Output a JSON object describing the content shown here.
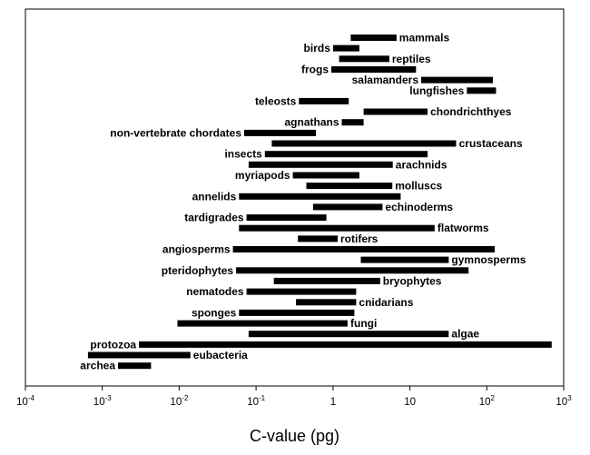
{
  "chart_data": {
    "type": "bar",
    "orientation": "horizontal-range",
    "title": "",
    "xlabel": "C-value (pg)",
    "ylabel": "",
    "xscale": "log",
    "xlim": [
      0.0001,
      1000
    ],
    "x_ticks": [
      {
        "base": "10",
        "exp": "-4"
      },
      {
        "base": "10",
        "exp": "-3"
      },
      {
        "base": "10",
        "exp": "-2"
      },
      {
        "base": "10",
        "exp": "-1"
      },
      {
        "base": "1",
        "exp": ""
      },
      {
        "base": "10",
        "exp": ""
      },
      {
        "base": "10",
        "exp": "2"
      },
      {
        "base": "10",
        "exp": "3"
      }
    ],
    "grid": false,
    "legend": "none",
    "bar_color": "#000000",
    "series": [
      {
        "label": "mammals",
        "min": 1.7,
        "max": 6.7,
        "label_side": "right"
      },
      {
        "label": "birds",
        "min": 1.0,
        "max": 2.2,
        "label_side": "left"
      },
      {
        "label": "reptiles",
        "min": 1.2,
        "max": 5.4,
        "label_side": "right"
      },
      {
        "label": "frogs",
        "min": 0.95,
        "max": 12,
        "label_side": "left"
      },
      {
        "label": "salamanders",
        "min": 14,
        "max": 120,
        "label_side": "left"
      },
      {
        "label": "lungfishes",
        "min": 55,
        "max": 132,
        "label_side": "left"
      },
      {
        "label": "teleosts",
        "min": 0.36,
        "max": 1.6,
        "label_side": "left"
      },
      {
        "label": "chondrichthyes",
        "min": 2.5,
        "max": 17,
        "label_side": "right"
      },
      {
        "label": "agnathans",
        "min": 1.3,
        "max": 2.5,
        "label_side": "left"
      },
      {
        "label": "non-vertebrate chordates",
        "min": 0.07,
        "max": 0.6,
        "label_side": "left"
      },
      {
        "label": "crustaceans",
        "min": 0.16,
        "max": 40,
        "label_side": "right"
      },
      {
        "label": "insects",
        "min": 0.13,
        "max": 17,
        "label_side": "left"
      },
      {
        "label": "arachnids",
        "min": 0.08,
        "max": 6,
        "label_side": "right"
      },
      {
        "label": "myriapods",
        "min": 0.3,
        "max": 2.2,
        "label_side": "left"
      },
      {
        "label": "molluscs",
        "min": 0.45,
        "max": 5.9,
        "label_side": "right"
      },
      {
        "label": "annelids",
        "min": 0.06,
        "max": 7.6,
        "label_side": "left"
      },
      {
        "label": "echinoderms",
        "min": 0.55,
        "max": 4.4,
        "label_side": "right"
      },
      {
        "label": "tardigrades",
        "min": 0.075,
        "max": 0.82,
        "label_side": "left"
      },
      {
        "label": "flatworms",
        "min": 0.06,
        "max": 21,
        "label_side": "right"
      },
      {
        "label": "rotifers",
        "min": 0.35,
        "max": 1.15,
        "label_side": "right"
      },
      {
        "label": "angiosperms",
        "min": 0.05,
        "max": 127,
        "label_side": "left"
      },
      {
        "label": "gymnosperms",
        "min": 2.3,
        "max": 32,
        "label_side": "right"
      },
      {
        "label": "pteridophytes",
        "min": 0.055,
        "max": 58,
        "label_side": "left"
      },
      {
        "label": "bryophytes",
        "min": 0.17,
        "max": 4.1,
        "label_side": "right"
      },
      {
        "label": "nematodes",
        "min": 0.075,
        "max": 2.0,
        "label_side": "left"
      },
      {
        "label": "cnidarians",
        "min": 0.33,
        "max": 2.0,
        "label_side": "right"
      },
      {
        "label": "sponges",
        "min": 0.06,
        "max": 1.9,
        "label_side": "left"
      },
      {
        "label": "fungi",
        "min": 0.0095,
        "max": 1.55,
        "label_side": "right"
      },
      {
        "label": "algae",
        "min": 0.08,
        "max": 32,
        "label_side": "right"
      },
      {
        "label": "protozoa",
        "min": 0.003,
        "max": 700,
        "label_side": "left"
      },
      {
        "label": "eubacteria",
        "min": 0.00065,
        "max": 0.014,
        "label_side": "right"
      },
      {
        "label": "archea",
        "min": 0.0016,
        "max": 0.0043,
        "label_side": "left"
      }
    ]
  }
}
